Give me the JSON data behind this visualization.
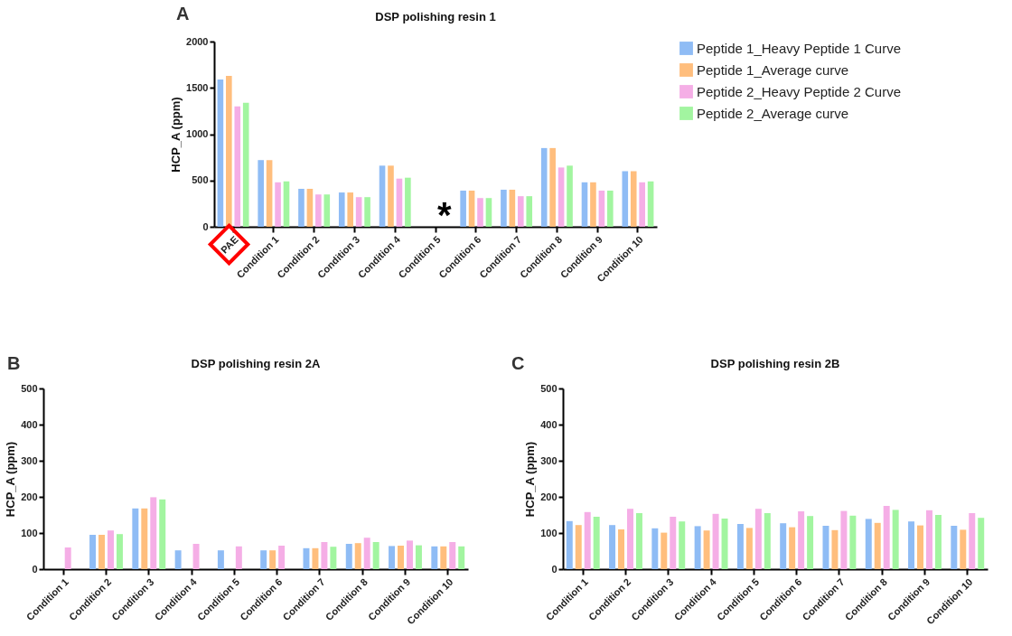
{
  "chart_data": [
    {
      "type": "bar",
      "title": "DSP polishing resin 1",
      "ylabel": "HCP_A (ppm)",
      "categories": [
        "PAE",
        "Condition 1",
        "Condition 2",
        "Condition 3",
        "Condition 4",
        "Condition 5",
        "Condition 6",
        "Condition 7",
        "Condition 8",
        "Condition 9",
        "Condition 10"
      ],
      "series": [
        {
          "name": "Peptide 1_Heavy Peptide 1 Curve",
          "color": "#8fbcf5",
          "values": [
            1590,
            720,
            410,
            370,
            660,
            null,
            390,
            400,
            850,
            480,
            600
          ]
        },
        {
          "name": "Peptide 1_Average curve",
          "color": "#ffbe7d",
          "values": [
            1630,
            720,
            410,
            370,
            660,
            null,
            390,
            400,
            850,
            480,
            600
          ]
        },
        {
          "name": "Peptide 2_Heavy Peptide 2 Curve",
          "color": "#f5aee6",
          "values": [
            1300,
            480,
            350,
            320,
            520,
            null,
            310,
            330,
            640,
            390,
            480
          ]
        },
        {
          "name": "Peptide 2_Average curve",
          "color": "#a2f5a0",
          "values": [
            1340,
            490,
            350,
            320,
            530,
            null,
            310,
            330,
            660,
            390,
            490
          ]
        }
      ],
      "ylim": [
        0,
        2000
      ],
      "yticks": [
        0,
        500,
        1000,
        1500,
        2000
      ],
      "legend": "right",
      "annotations": [
        "A",
        "*"
      ]
    },
    {
      "type": "bar",
      "title": "DSP polishing resin 2A",
      "ylabel": "HCP_A (ppm)",
      "categories": [
        "Condition 1",
        "Condition 2",
        "Condition 3",
        "Condition 4",
        "Condition 5",
        "Condition 6",
        "Condition 7",
        "Condition 8",
        "Condition 9",
        "Condition 10"
      ],
      "series": [
        {
          "color": "#8fbcf5",
          "values": [
            null,
            95,
            168,
            52,
            52,
            52,
            58,
            70,
            64,
            63
          ]
        },
        {
          "color": "#ffbe7d",
          "values": [
            null,
            95,
            168,
            null,
            null,
            52,
            58,
            72,
            65,
            63
          ]
        },
        {
          "color": "#f5aee6",
          "values": [
            60,
            107,
            199,
            70,
            63,
            65,
            75,
            87,
            79,
            75
          ]
        },
        {
          "color": "#a2f5a0",
          "values": [
            null,
            97,
            193,
            null,
            null,
            null,
            62,
            75,
            66,
            63
          ]
        }
      ],
      "ylim": [
        0,
        500
      ],
      "yticks": [
        0,
        100,
        200,
        300,
        400,
        500
      ],
      "annotations": [
        "B"
      ]
    },
    {
      "type": "bar",
      "title": "DSP polishing resin 2B",
      "ylabel": "HCP_A (ppm)",
      "categories": [
        "Condition 1",
        "Condition 2",
        "Condition 3",
        "Condition 4",
        "Condition 5",
        "Condition 6",
        "Condition 7",
        "Condition 8",
        "Condition 9",
        "Condition 10"
      ],
      "series": [
        {
          "color": "#8fbcf5",
          "values": [
            133,
            122,
            113,
            119,
            125,
            127,
            120,
            139,
            132,
            120
          ]
        },
        {
          "color": "#ffbe7d",
          "values": [
            122,
            110,
            101,
            107,
            114,
            116,
            108,
            128,
            121,
            109
          ]
        },
        {
          "color": "#f5aee6",
          "values": [
            158,
            167,
            145,
            153,
            167,
            160,
            161,
            175,
            163,
            155
          ]
        },
        {
          "color": "#a2f5a0",
          "values": [
            145,
            155,
            132,
            140,
            155,
            147,
            148,
            164,
            150,
            142
          ]
        }
      ],
      "ylim": [
        0,
        500
      ],
      "yticks": [
        0,
        100,
        200,
        300,
        400,
        500
      ],
      "annotations": [
        "C"
      ]
    }
  ]
}
